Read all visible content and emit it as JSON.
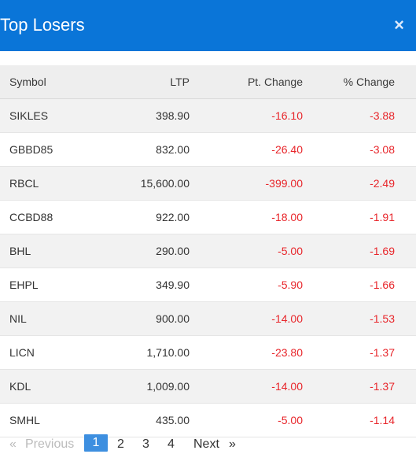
{
  "header": {
    "title": "Top Losers",
    "close_glyph": "×"
  },
  "colors": {
    "accent": "#0a75d8",
    "negative": "#e8262b",
    "active_page": "#3d8fe0"
  },
  "table": {
    "columns": {
      "symbol": "Symbol",
      "ltp": "LTP",
      "pt_change": "Pt. Change",
      "pct_change": "% Change"
    },
    "rows": [
      {
        "symbol": "SIKLES",
        "ltp": "398.90",
        "pt": "-16.10",
        "pct": "-3.88"
      },
      {
        "symbol": "GBBD85",
        "ltp": "832.00",
        "pt": "-26.40",
        "pct": "-3.08"
      },
      {
        "symbol": "RBCL",
        "ltp": "15,600.00",
        "pt": "-399.00",
        "pct": "-2.49"
      },
      {
        "symbol": "CCBD88",
        "ltp": "922.00",
        "pt": "-18.00",
        "pct": "-1.91"
      },
      {
        "symbol": "BHL",
        "ltp": "290.00",
        "pt": "-5.00",
        "pct": "-1.69"
      },
      {
        "symbol": "EHPL",
        "ltp": "349.90",
        "pt": "-5.90",
        "pct": "-1.66"
      },
      {
        "symbol": "NIL",
        "ltp": "900.00",
        "pt": "-14.00",
        "pct": "-1.53"
      },
      {
        "symbol": "LICN",
        "ltp": "1,710.00",
        "pt": "-23.80",
        "pct": "-1.37"
      },
      {
        "symbol": "KDL",
        "ltp": "1,009.00",
        "pt": "-14.00",
        "pct": "-1.37"
      },
      {
        "symbol": "SMHL",
        "ltp": "435.00",
        "pt": "-5.00",
        "pct": "-1.14"
      }
    ]
  },
  "pagination": {
    "prev_arrow": "«",
    "prev_label": "Previous",
    "pages": [
      "1",
      "2",
      "3",
      "4"
    ],
    "active_page": "1",
    "next_label": "Next",
    "next_arrow": "»"
  }
}
